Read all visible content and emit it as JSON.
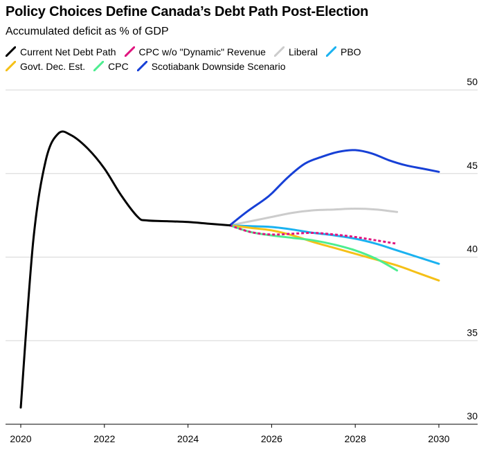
{
  "title": "Policy Choices Define Canada’s Debt Path Post-Election",
  "subtitle": "Accumulated deficit as % of GDP",
  "chart_data": {
    "type": "line",
    "xlim": [
      2020,
      2030
    ],
    "ylim": [
      30,
      50
    ],
    "x_ticks": [
      "2020",
      "2022",
      "2024",
      "2026",
      "2028",
      "2030"
    ],
    "y_ticks": [
      "30",
      "35",
      "40",
      "45",
      "50"
    ],
    "y_axis_side": "right",
    "grid": "horizontal",
    "legend_position": "top",
    "series": [
      {
        "name": "Current Net Debt Path",
        "color": "#000000",
        "dash": false,
        "points": [
          [
            2020.0,
            31.0
          ],
          [
            2020.3,
            41.0
          ],
          [
            2020.6,
            45.8
          ],
          [
            2020.9,
            47.4
          ],
          [
            2021.2,
            47.3
          ],
          [
            2021.6,
            46.5
          ],
          [
            2022.0,
            45.3
          ],
          [
            2022.4,
            43.7
          ],
          [
            2022.8,
            42.4
          ],
          [
            2023.0,
            42.2
          ],
          [
            2023.5,
            42.15
          ],
          [
            2024.0,
            42.1
          ],
          [
            2024.5,
            42.0
          ],
          [
            2025.0,
            41.9
          ]
        ]
      },
      {
        "name": "CPC w/o \"Dynamic\" Revenue",
        "color": "#e0157f",
        "dash": true,
        "points": [
          [
            2025.0,
            41.9
          ],
          [
            2025.5,
            41.5
          ],
          [
            2026.0,
            41.35
          ],
          [
            2026.5,
            41.4
          ],
          [
            2027.0,
            41.45
          ],
          [
            2027.5,
            41.35
          ],
          [
            2028.0,
            41.2
          ],
          [
            2028.5,
            41.0
          ],
          [
            2029.0,
            40.8
          ]
        ]
      },
      {
        "name": "Liberal",
        "color": "#cccccc",
        "dash": false,
        "points": [
          [
            2025.0,
            41.9
          ],
          [
            2025.5,
            42.15
          ],
          [
            2026.0,
            42.4
          ],
          [
            2026.5,
            42.65
          ],
          [
            2027.0,
            42.8
          ],
          [
            2027.5,
            42.85
          ],
          [
            2028.0,
            42.9
          ],
          [
            2028.5,
            42.85
          ],
          [
            2029.0,
            42.7
          ]
        ]
      },
      {
        "name": "PBO",
        "color": "#1ab2f0",
        "dash": false,
        "points": [
          [
            2025.0,
            41.9
          ],
          [
            2025.5,
            41.85
          ],
          [
            2026.0,
            41.8
          ],
          [
            2026.5,
            41.65
          ],
          [
            2027.0,
            41.45
          ],
          [
            2027.5,
            41.3
          ],
          [
            2028.0,
            41.1
          ],
          [
            2028.5,
            40.8
          ],
          [
            2029.0,
            40.4
          ],
          [
            2029.5,
            40.0
          ],
          [
            2030.0,
            39.6
          ]
        ]
      },
      {
        "name": "Govt. Dec. Est.",
        "color": "#f5c017",
        "dash": false,
        "points": [
          [
            2025.0,
            41.9
          ],
          [
            2025.5,
            41.75
          ],
          [
            2026.0,
            41.6
          ],
          [
            2026.5,
            41.3
          ],
          [
            2027.0,
            40.9
          ],
          [
            2027.5,
            40.55
          ],
          [
            2028.0,
            40.2
          ],
          [
            2028.5,
            39.85
          ],
          [
            2029.0,
            39.5
          ],
          [
            2029.5,
            39.05
          ],
          [
            2030.0,
            38.6
          ]
        ]
      },
      {
        "name": "CPC",
        "color": "#4ded90",
        "dash": false,
        "points": [
          [
            2025.0,
            41.9
          ],
          [
            2025.5,
            41.5
          ],
          [
            2026.0,
            41.3
          ],
          [
            2026.5,
            41.15
          ],
          [
            2027.0,
            41.0
          ],
          [
            2027.5,
            40.75
          ],
          [
            2028.0,
            40.4
          ],
          [
            2028.5,
            39.9
          ],
          [
            2029.0,
            39.2
          ]
        ]
      },
      {
        "name": "Scotiabank Downside Scenario",
        "color": "#1740d6",
        "dash": false,
        "points": [
          [
            2025.0,
            41.9
          ],
          [
            2025.4,
            42.7
          ],
          [
            2025.8,
            43.4
          ],
          [
            2026.0,
            43.8
          ],
          [
            2026.4,
            44.8
          ],
          [
            2026.8,
            45.6
          ],
          [
            2027.2,
            46.0
          ],
          [
            2027.6,
            46.3
          ],
          [
            2028.0,
            46.4
          ],
          [
            2028.4,
            46.2
          ],
          [
            2028.8,
            45.8
          ],
          [
            2029.2,
            45.5
          ],
          [
            2029.6,
            45.3
          ],
          [
            2030.0,
            45.1
          ]
        ]
      }
    ]
  }
}
